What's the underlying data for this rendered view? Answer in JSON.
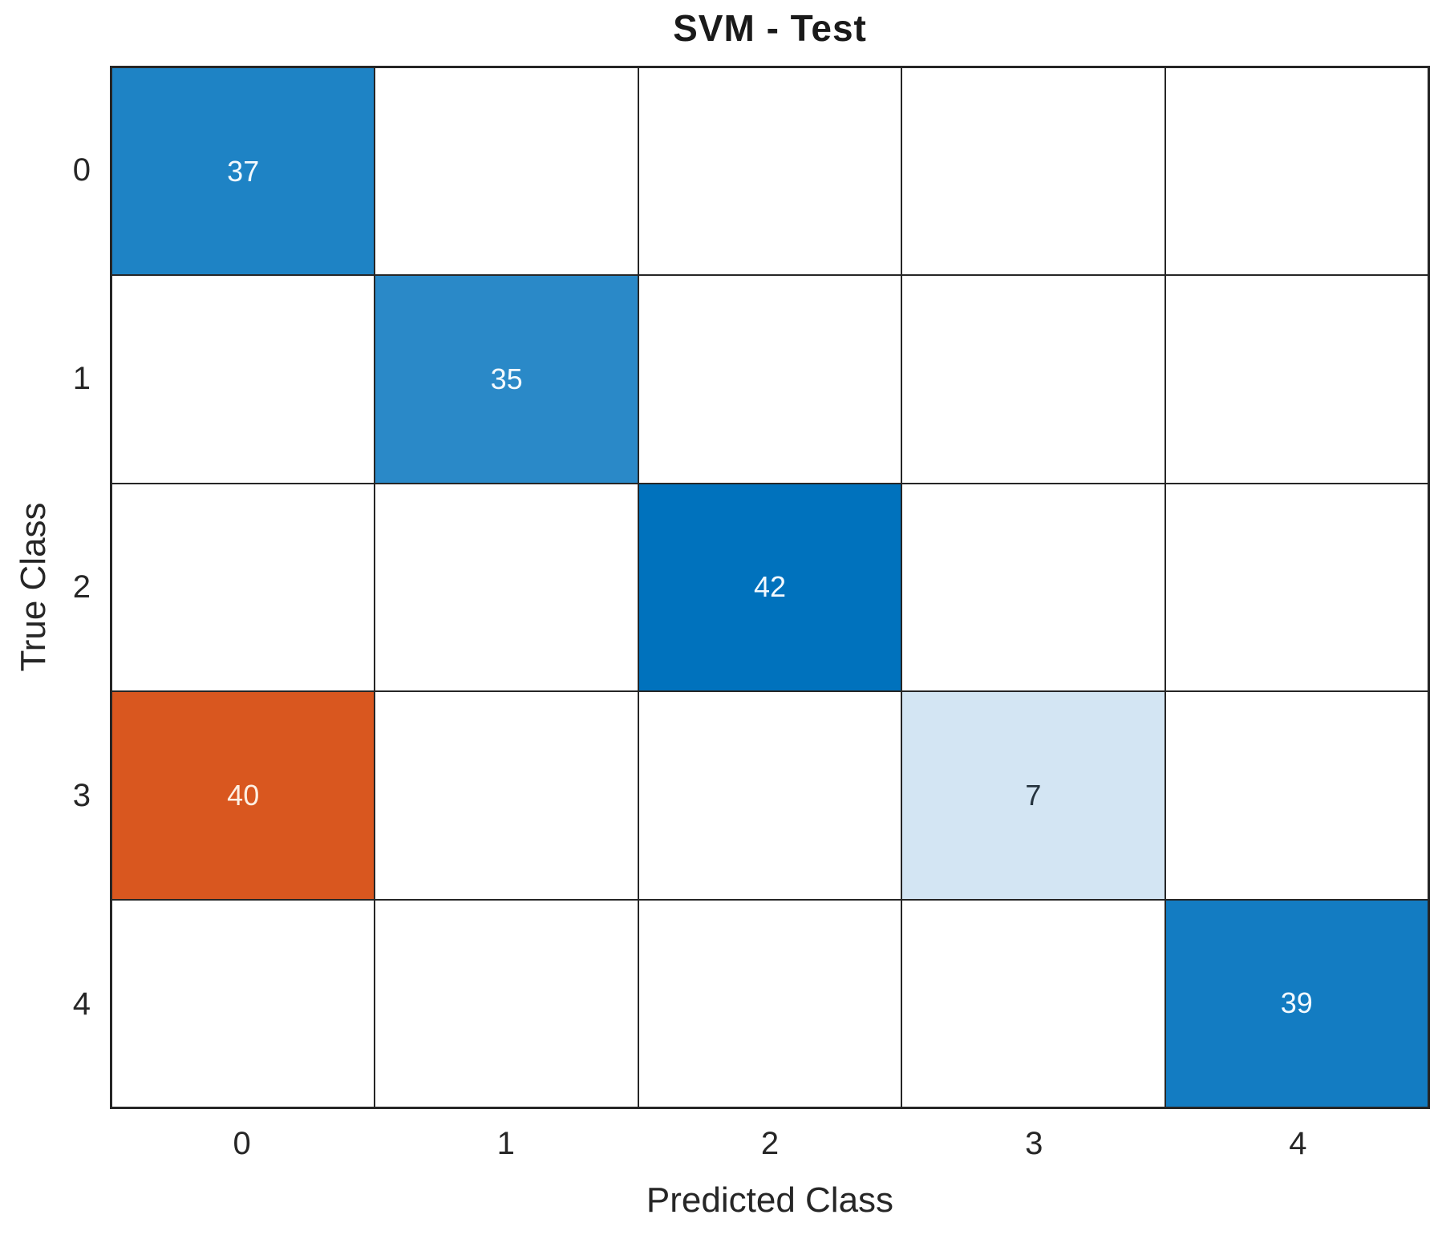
{
  "chart": {
    "title": "SVM - Test",
    "x_axis_label": "Predicted Class",
    "y_axis_label": "True Class"
  },
  "chart_data": {
    "type": "heatmap",
    "subtype": "confusion-matrix",
    "title": "SVM - Test",
    "xlabel": "Predicted Class",
    "ylabel": "True Class",
    "x_tick_labels": [
      "0",
      "1",
      "2",
      "3",
      "4"
    ],
    "y_tick_labels": [
      "0",
      "1",
      "2",
      "3",
      "4"
    ],
    "matrix": [
      [
        37,
        0,
        0,
        0,
        0
      ],
      [
        0,
        35,
        0,
        0,
        0
      ],
      [
        0,
        0,
        42,
        0,
        0
      ],
      [
        40,
        0,
        0,
        7,
        0
      ],
      [
        0,
        0,
        0,
        0,
        39
      ]
    ],
    "cells": [
      {
        "row": 0,
        "col": 0,
        "value": "37",
        "bg": "#1E83C5",
        "fg": "#F2F9FE"
      },
      {
        "row": 1,
        "col": 1,
        "value": "35",
        "bg": "#2A89C8",
        "fg": "#F2F9FE"
      },
      {
        "row": 2,
        "col": 2,
        "value": "42",
        "bg": "#0072BD",
        "fg": "#F2F9FE"
      },
      {
        "row": 3,
        "col": 0,
        "value": "40",
        "bg": "#D9571F",
        "fg": "#FDEFE2"
      },
      {
        "row": 3,
        "col": 3,
        "value": "7",
        "bg": "#D3E5F3",
        "fg": "#26343F"
      },
      {
        "row": 4,
        "col": 4,
        "value": "39",
        "bg": "#137CC2",
        "fg": "#F2F9FE"
      }
    ],
    "empty_cell_color": "#FFFFFF",
    "grid_line_color": "#262626",
    "diagonal_base_color": "#0072BD",
    "off_diagonal_base_color": "#D9531F",
    "grid": true,
    "legend_position": "none"
  }
}
